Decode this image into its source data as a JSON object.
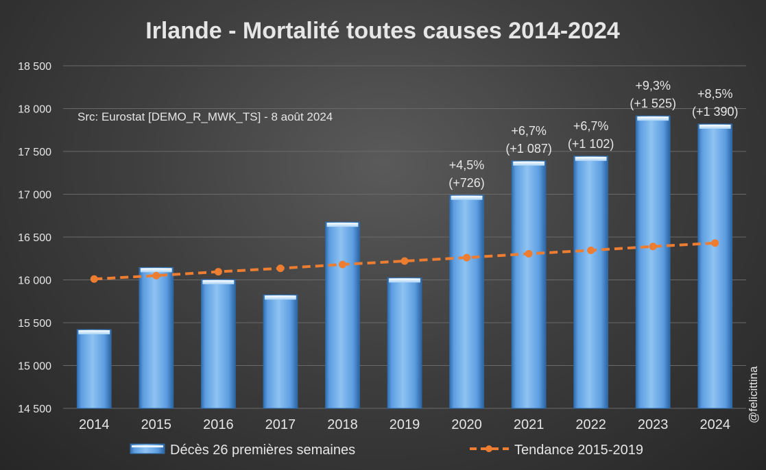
{
  "chart_data": {
    "type": "bar",
    "title": "Irlande - Mortalité toutes causes 2014-2024",
    "source": "Src: Eurostat [DEMO_R_MWK_TS] - 8 août 2024",
    "watermark": "@felicittina",
    "categories": [
      "2014",
      "2015",
      "2016",
      "2017",
      "2018",
      "2019",
      "2020",
      "2021",
      "2022",
      "2023",
      "2024"
    ],
    "ylim": [
      14500,
      18500
    ],
    "yticks": [
      14500,
      15000,
      15500,
      16000,
      16500,
      17000,
      17500,
      18000,
      18500
    ],
    "ytick_labels": [
      "14 500",
      "15 000",
      "15 500",
      "16 000",
      "16 500",
      "17 000",
      "17 500",
      "18 000",
      "18 500"
    ],
    "grid": true,
    "series": [
      {
        "name": "Décès 26 premières semaines",
        "type": "bar",
        "color": "#5b9bd5",
        "values": [
          15420,
          16145,
          16005,
          15825,
          16675,
          16025,
          16990,
          17390,
          17445,
          17915,
          17820
        ]
      },
      {
        "name": "Tendance 2015-2019",
        "type": "line",
        "style": "dashed",
        "color": "#ed7d31",
        "values": [
          16010,
          16050,
          16095,
          16135,
          16180,
          16220,
          16260,
          16305,
          16345,
          16390,
          16430
        ]
      }
    ],
    "annotations": [
      {
        "category": "2020",
        "lines": [
          "+4,5%",
          "(+726)"
        ]
      },
      {
        "category": "2021",
        "lines": [
          "+6,7%",
          "(+1 087)"
        ]
      },
      {
        "category": "2022",
        "lines": [
          "+6,7%",
          "(+1 102)"
        ]
      },
      {
        "category": "2023",
        "lines": [
          "+9,3%",
          "(+1 525)"
        ]
      },
      {
        "category": "2024",
        "lines": [
          "+8,5%",
          "(+1 390)"
        ]
      }
    ],
    "legend_position": "bottom"
  },
  "colors": {
    "text": "#e6e6e6",
    "grid": "#6a6a6a",
    "bar_top": "#b9dcf7",
    "bar_edge": "#2f6aa8"
  }
}
